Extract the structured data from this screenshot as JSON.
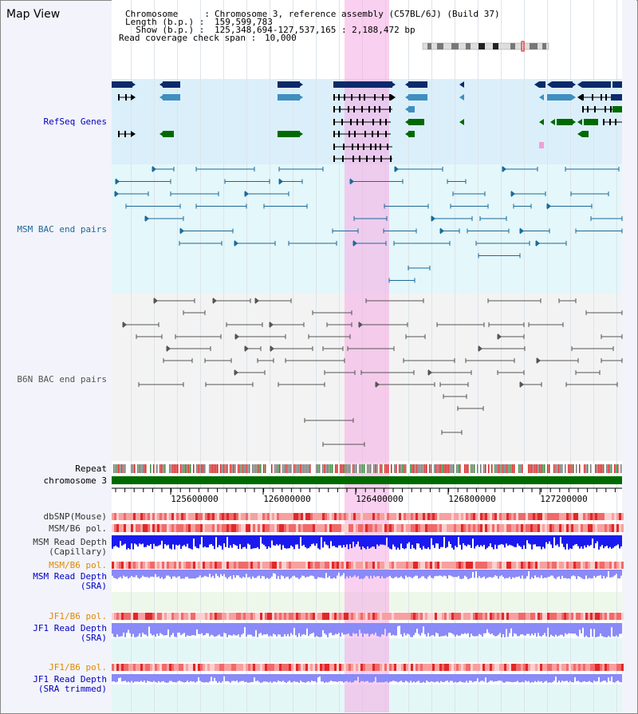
{
  "view": {
    "title": "Map View"
  },
  "header": {
    "chromosome_key": "Chromosome     :",
    "chromosome_val": "Chromosome 3, reference assembly (C57BL/6J) (Build 37)",
    "length_key": "Length (b.p.) :",
    "length_val": "159,599,783",
    "show_key": "  Show (b.p.) :",
    "show_val": "125,348,694-127,537,165 : 2,188,472 bp",
    "read_key": "Read coverage check span :",
    "read_val": "10,000"
  },
  "tracks": {
    "refseq": {
      "label": "RefSeq Genes",
      "color": "#0000c0"
    },
    "msm_bac": {
      "label": "MSM BAC end pairs",
      "color": "#1a6a9a"
    },
    "b6n_bac": {
      "label": "B6N BAC end pairs",
      "color": "#555555"
    },
    "repeat": {
      "label": "Repeat"
    },
    "chromosome": {
      "label": "chromosome 3"
    },
    "dbsnp": {
      "label": "dbSNP(Mouse)"
    },
    "msm_b6_pol_1": {
      "label": "MSM/B6 pol."
    },
    "msm_depth_cap": {
      "label1": "MSM Read Depth",
      "label2": "(Capillary)"
    },
    "msm_b6_pol_2": {
      "label": "MSM/B6 pol.",
      "color": "#e08a00"
    },
    "msm_depth_sra": {
      "label1": "MSM Read Depth",
      "label2": "(SRA)"
    },
    "jf1_b6_pol_1": {
      "label": "JF1/B6 pol.",
      "color": "#e08a00"
    },
    "jf1_depth_sra": {
      "label1": "JF1 Read Depth",
      "label2": "(SRA)"
    },
    "jf1_b6_pol_2": {
      "label": "JF1/B6 pol.",
      "color": "#e08a00"
    },
    "jf1_depth_trim": {
      "label1": "JF1 Read Depth",
      "label2": "(SRA trimmed)"
    }
  },
  "axis": {
    "ticks": [
      "125600000",
      "126000000",
      "126400000",
      "126800000",
      "127200000"
    ]
  },
  "colors": {
    "navy": "#0a2a6a",
    "steel": "#3f8fc0",
    "green": "#006a00",
    "blue": "#1a1aee",
    "lightblue": "#8a8af8",
    "red": "#ee3333"
  }
}
